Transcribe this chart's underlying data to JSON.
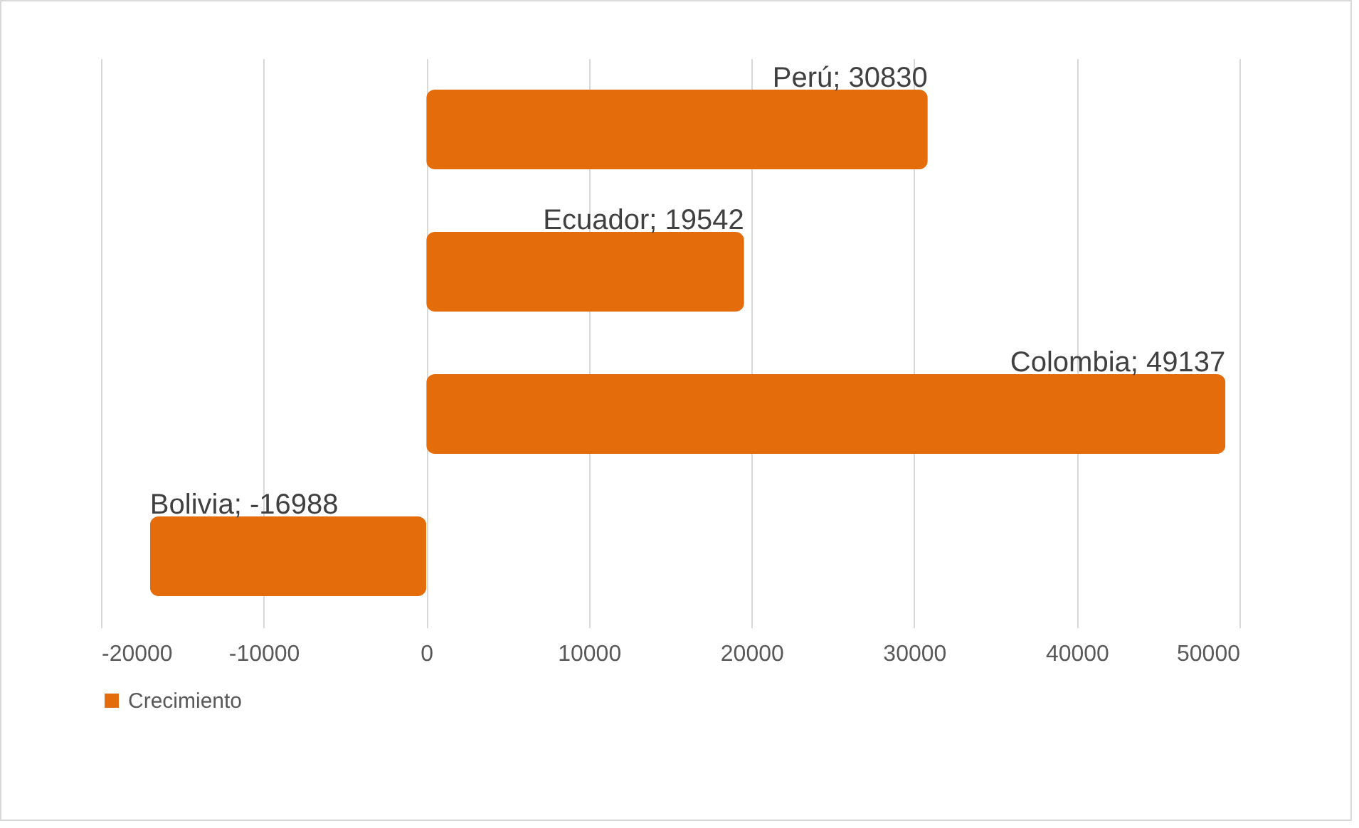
{
  "chart_data": {
    "type": "bar",
    "orientation": "horizontal",
    "categories": [
      "Perú",
      "Ecuador",
      "Colombia",
      "Bolivia"
    ],
    "series": [
      {
        "name": "Crecimiento",
        "color": "#e46c0a",
        "values": [
          30830,
          19542,
          49137,
          -16988
        ],
        "value_labels": [
          "; 30830",
          "; 19542",
          "; 49137",
          "; -16988"
        ]
      }
    ],
    "xlim": [
      -20000,
      50000
    ],
    "xticks": [
      -20000,
      -10000,
      0,
      10000,
      20000,
      30000,
      40000,
      50000
    ],
    "grid": "x",
    "legend": "bottom",
    "tick_labels": "x"
  }
}
